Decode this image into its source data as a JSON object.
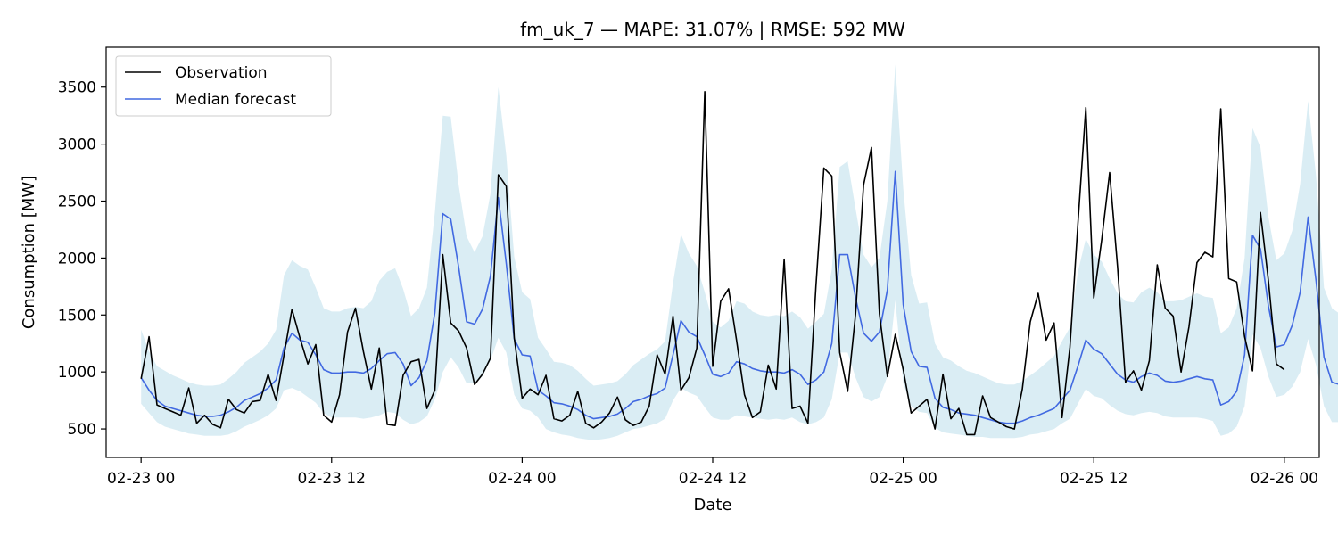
{
  "chart_data": {
    "type": "line",
    "title": "fm_uk_7 — MAPE: 31.07% | RMSE: 592 MW",
    "xlabel": "Date",
    "ylabel": "Consumption [MW]",
    "ylim": [
      250,
      3850
    ],
    "xlim_hours": [
      -2.2,
      74.2
    ],
    "x_unit": "hours from 02-23 00",
    "x_ticks": [
      {
        "hour": 0,
        "label": "02-23 00"
      },
      {
        "hour": 12,
        "label": "02-23 12"
      },
      {
        "hour": 24,
        "label": "02-24 00"
      },
      {
        "hour": 36,
        "label": "02-24 12"
      },
      {
        "hour": 48,
        "label": "02-25 00"
      },
      {
        "hour": 60,
        "label": "02-25 12"
      },
      {
        "hour": 72,
        "label": "02-26 00"
      }
    ],
    "y_ticks": [
      500,
      1000,
      1500,
      2000,
      2500,
      3000,
      3500
    ],
    "grid": false,
    "legend": {
      "position": "top-left",
      "entries": [
        "Observation",
        "Median forecast"
      ]
    },
    "x_start_hour": 0,
    "x_step_hours": 0.5,
    "series": [
      {
        "name": "Observation",
        "color": "#000000",
        "values": [
          940,
          1310,
          710,
          680,
          650,
          620,
          860,
          550,
          620,
          540,
          510,
          760,
          670,
          640,
          740,
          750,
          980,
          750,
          1150,
          1550,
          1300,
          1070,
          1240,
          620,
          560,
          800,
          1350,
          1560,
          1180,
          850,
          1210,
          540,
          530,
          970,
          1090,
          1110,
          680,
          840,
          2030,
          1430,
          1360,
          1210,
          890,
          980,
          1120,
          2730,
          2630,
          1300,
          770,
          850,
          800,
          970,
          590,
          570,
          620,
          830,
          550,
          510,
          560,
          640,
          780,
          580,
          530,
          560,
          700,
          1150,
          980,
          1490,
          840,
          950,
          1210,
          3460,
          1050,
          1620,
          1730,
          1280,
          800,
          600,
          650,
          1060,
          850,
          1990,
          680,
          700,
          550,
          1750,
          2790,
          2720,
          1170,
          830,
          1510,
          2640,
          2970,
          1510,
          960,
          1330,
          1020,
          640,
          700,
          760,
          500,
          980,
          590,
          680,
          450,
          450,
          790,
          600,
          560,
          520,
          500,
          850,
          1440,
          1690,
          1280,
          1430,
          600,
          1220,
          2300,
          3320,
          1650,
          2160,
          2750,
          1920,
          910,
          1010,
          840,
          1100,
          1940,
          1560,
          1490,
          1000,
          1400,
          1960,
          2050,
          2010,
          3310,
          1820,
          1790,
          1310,
          1010,
          2400,
          1800,
          1070,
          1020
        ]
      },
      {
        "name": "Median forecast",
        "color": "#4169e1",
        "values": [
          950,
          840,
          750,
          700,
          680,
          660,
          640,
          620,
          610,
          610,
          620,
          650,
          690,
          750,
          780,
          810,
          860,
          930,
          1210,
          1340,
          1280,
          1260,
          1150,
          1020,
          990,
          990,
          1000,
          1000,
          990,
          1030,
          1100,
          1160,
          1170,
          1070,
          880,
          950,
          1100,
          1520,
          2390,
          2340,
          1920,
          1440,
          1420,
          1550,
          1840,
          2530,
          1950,
          1290,
          1150,
          1140,
          840,
          790,
          730,
          720,
          700,
          670,
          620,
          590,
          600,
          610,
          630,
          680,
          740,
          760,
          790,
          810,
          860,
          1150,
          1450,
          1350,
          1310,
          1150,
          980,
          960,
          990,
          1090,
          1070,
          1030,
          1010,
          1000,
          1000,
          990,
          1020,
          980,
          890,
          930,
          1000,
          1250,
          2030,
          2030,
          1650,
          1340,
          1270,
          1350,
          1720,
          2760,
          1590,
          1180,
          1050,
          1040,
          770,
          690,
          670,
          640,
          630,
          620,
          600,
          580,
          560,
          550,
          550,
          570,
          600,
          620,
          650,
          680,
          760,
          840,
          1050,
          1280,
          1200,
          1160,
          1070,
          980,
          930,
          910,
          960,
          990,
          970,
          920,
          910,
          920,
          940,
          960,
          940,
          930,
          710,
          740,
          830,
          1150,
          2200,
          2080,
          1580,
          1220,
          1240,
          1410,
          1700,
          2360,
          1800,
          1130,
          910,
          890
        ]
      }
    ],
    "band": {
      "color": "#add8e6",
      "opacity": 0.45,
      "lower": [
        720,
        640,
        560,
        520,
        500,
        480,
        460,
        450,
        440,
        440,
        440,
        450,
        480,
        520,
        550,
        580,
        620,
        680,
        840,
        860,
        830,
        780,
        730,
        640,
        600,
        600,
        600,
        600,
        590,
        600,
        620,
        650,
        640,
        580,
        540,
        560,
        610,
        760,
        1000,
        1130,
        1040,
        900,
        910,
        960,
        1100,
        1300,
        1170,
        800,
        680,
        660,
        600,
        500,
        470,
        450,
        440,
        420,
        410,
        400,
        410,
        420,
        440,
        470,
        500,
        510,
        530,
        550,
        590,
        750,
        860,
        820,
        790,
        690,
        600,
        580,
        580,
        620,
        610,
        600,
        590,
        580,
        590,
        580,
        600,
        560,
        540,
        560,
        600,
        760,
        1170,
        1170,
        950,
        780,
        740,
        780,
        960,
        1630,
        900,
        700,
        650,
        640,
        510,
        470,
        460,
        450,
        440,
        430,
        430,
        420,
        420,
        420,
        420,
        430,
        450,
        460,
        480,
        500,
        550,
        590,
        720,
        850,
        790,
        770,
        710,
        660,
        630,
        620,
        640,
        650,
        640,
        610,
        600,
        600,
        600,
        600,
        590,
        570,
        440,
        460,
        520,
        700,
        1330,
        1210,
        960,
        780,
        800,
        870,
        1000,
        1290,
        1060,
        700,
        560,
        560
      ],
      "upper": [
        1370,
        1180,
        1050,
        1010,
        970,
        940,
        910,
        890,
        880,
        880,
        890,
        940,
        1000,
        1080,
        1130,
        1180,
        1250,
        1370,
        1850,
        1980,
        1930,
        1900,
        1740,
        1560,
        1530,
        1530,
        1560,
        1570,
        1560,
        1620,
        1800,
        1880,
        1910,
        1730,
        1490,
        1560,
        1740,
        2400,
        3250,
        3240,
        2640,
        2190,
        2050,
        2190,
        2560,
        3500,
        2900,
        2010,
        1700,
        1640,
        1300,
        1200,
        1090,
        1080,
        1060,
        1010,
        940,
        880,
        890,
        900,
        920,
        980,
        1060,
        1110,
        1160,
        1200,
        1270,
        1780,
        2210,
        2040,
        1930,
        1700,
        1440,
        1390,
        1450,
        1620,
        1600,
        1530,
        1500,
        1490,
        1500,
        1490,
        1530,
        1480,
        1380,
        1440,
        1510,
        1900,
        2800,
        2850,
        2430,
        2030,
        1920,
        2000,
        2500,
        3700,
        2610,
        1850,
        1600,
        1610,
        1250,
        1130,
        1100,
        1050,
        1010,
        990,
        960,
        930,
        900,
        890,
        890,
        920,
        970,
        1020,
        1080,
        1140,
        1270,
        1390,
        1880,
        2170,
        2030,
        1970,
        1820,
        1690,
        1620,
        1610,
        1700,
        1740,
        1700,
        1620,
        1620,
        1630,
        1660,
        1690,
        1660,
        1650,
        1340,
        1390,
        1560,
        2000,
        3140,
        2970,
        2360,
        1980,
        2040,
        2240,
        2650,
        3380,
        2720,
        1740,
        1560,
        1510
      ]
    }
  }
}
